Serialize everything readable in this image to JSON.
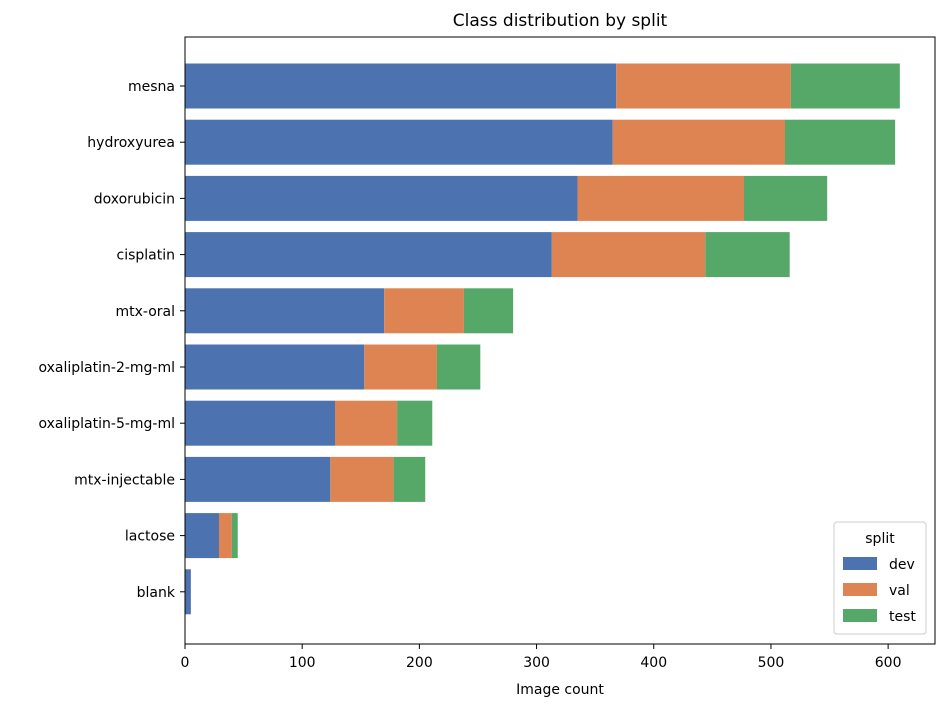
{
  "chart_data": {
    "type": "bar",
    "orientation": "horizontal",
    "stacked": true,
    "title": "Class distribution by split",
    "xlabel": "Image count",
    "ylabel": "",
    "xlim": [
      0,
      640
    ],
    "xticks": [
      0,
      100,
      200,
      300,
      400,
      500,
      600
    ],
    "grid": false,
    "categories": [
      "mesna",
      "hydroxyurea",
      "doxorubicin",
      "cisplatin",
      "mtx-oral",
      "oxaliplatin-2-mg-ml",
      "oxaliplatin-5-mg-ml",
      "mtx-injectable",
      "lactose",
      "blank"
    ],
    "series": [
      {
        "name": "dev",
        "color": "#4c72b0",
        "values": [
          368,
          365,
          335,
          313,
          170,
          153,
          128,
          124,
          29,
          5
        ]
      },
      {
        "name": "val",
        "color": "#dd8452",
        "values": [
          149,
          147,
          142,
          131,
          68,
          62,
          53,
          54,
          11,
          0
        ]
      },
      {
        "name": "test",
        "color": "#55a868",
        "values": [
          93,
          94,
          71,
          72,
          42,
          37,
          30,
          27,
          5,
          0
        ]
      }
    ],
    "legend": {
      "title": "split",
      "placement": "lower-right"
    }
  }
}
